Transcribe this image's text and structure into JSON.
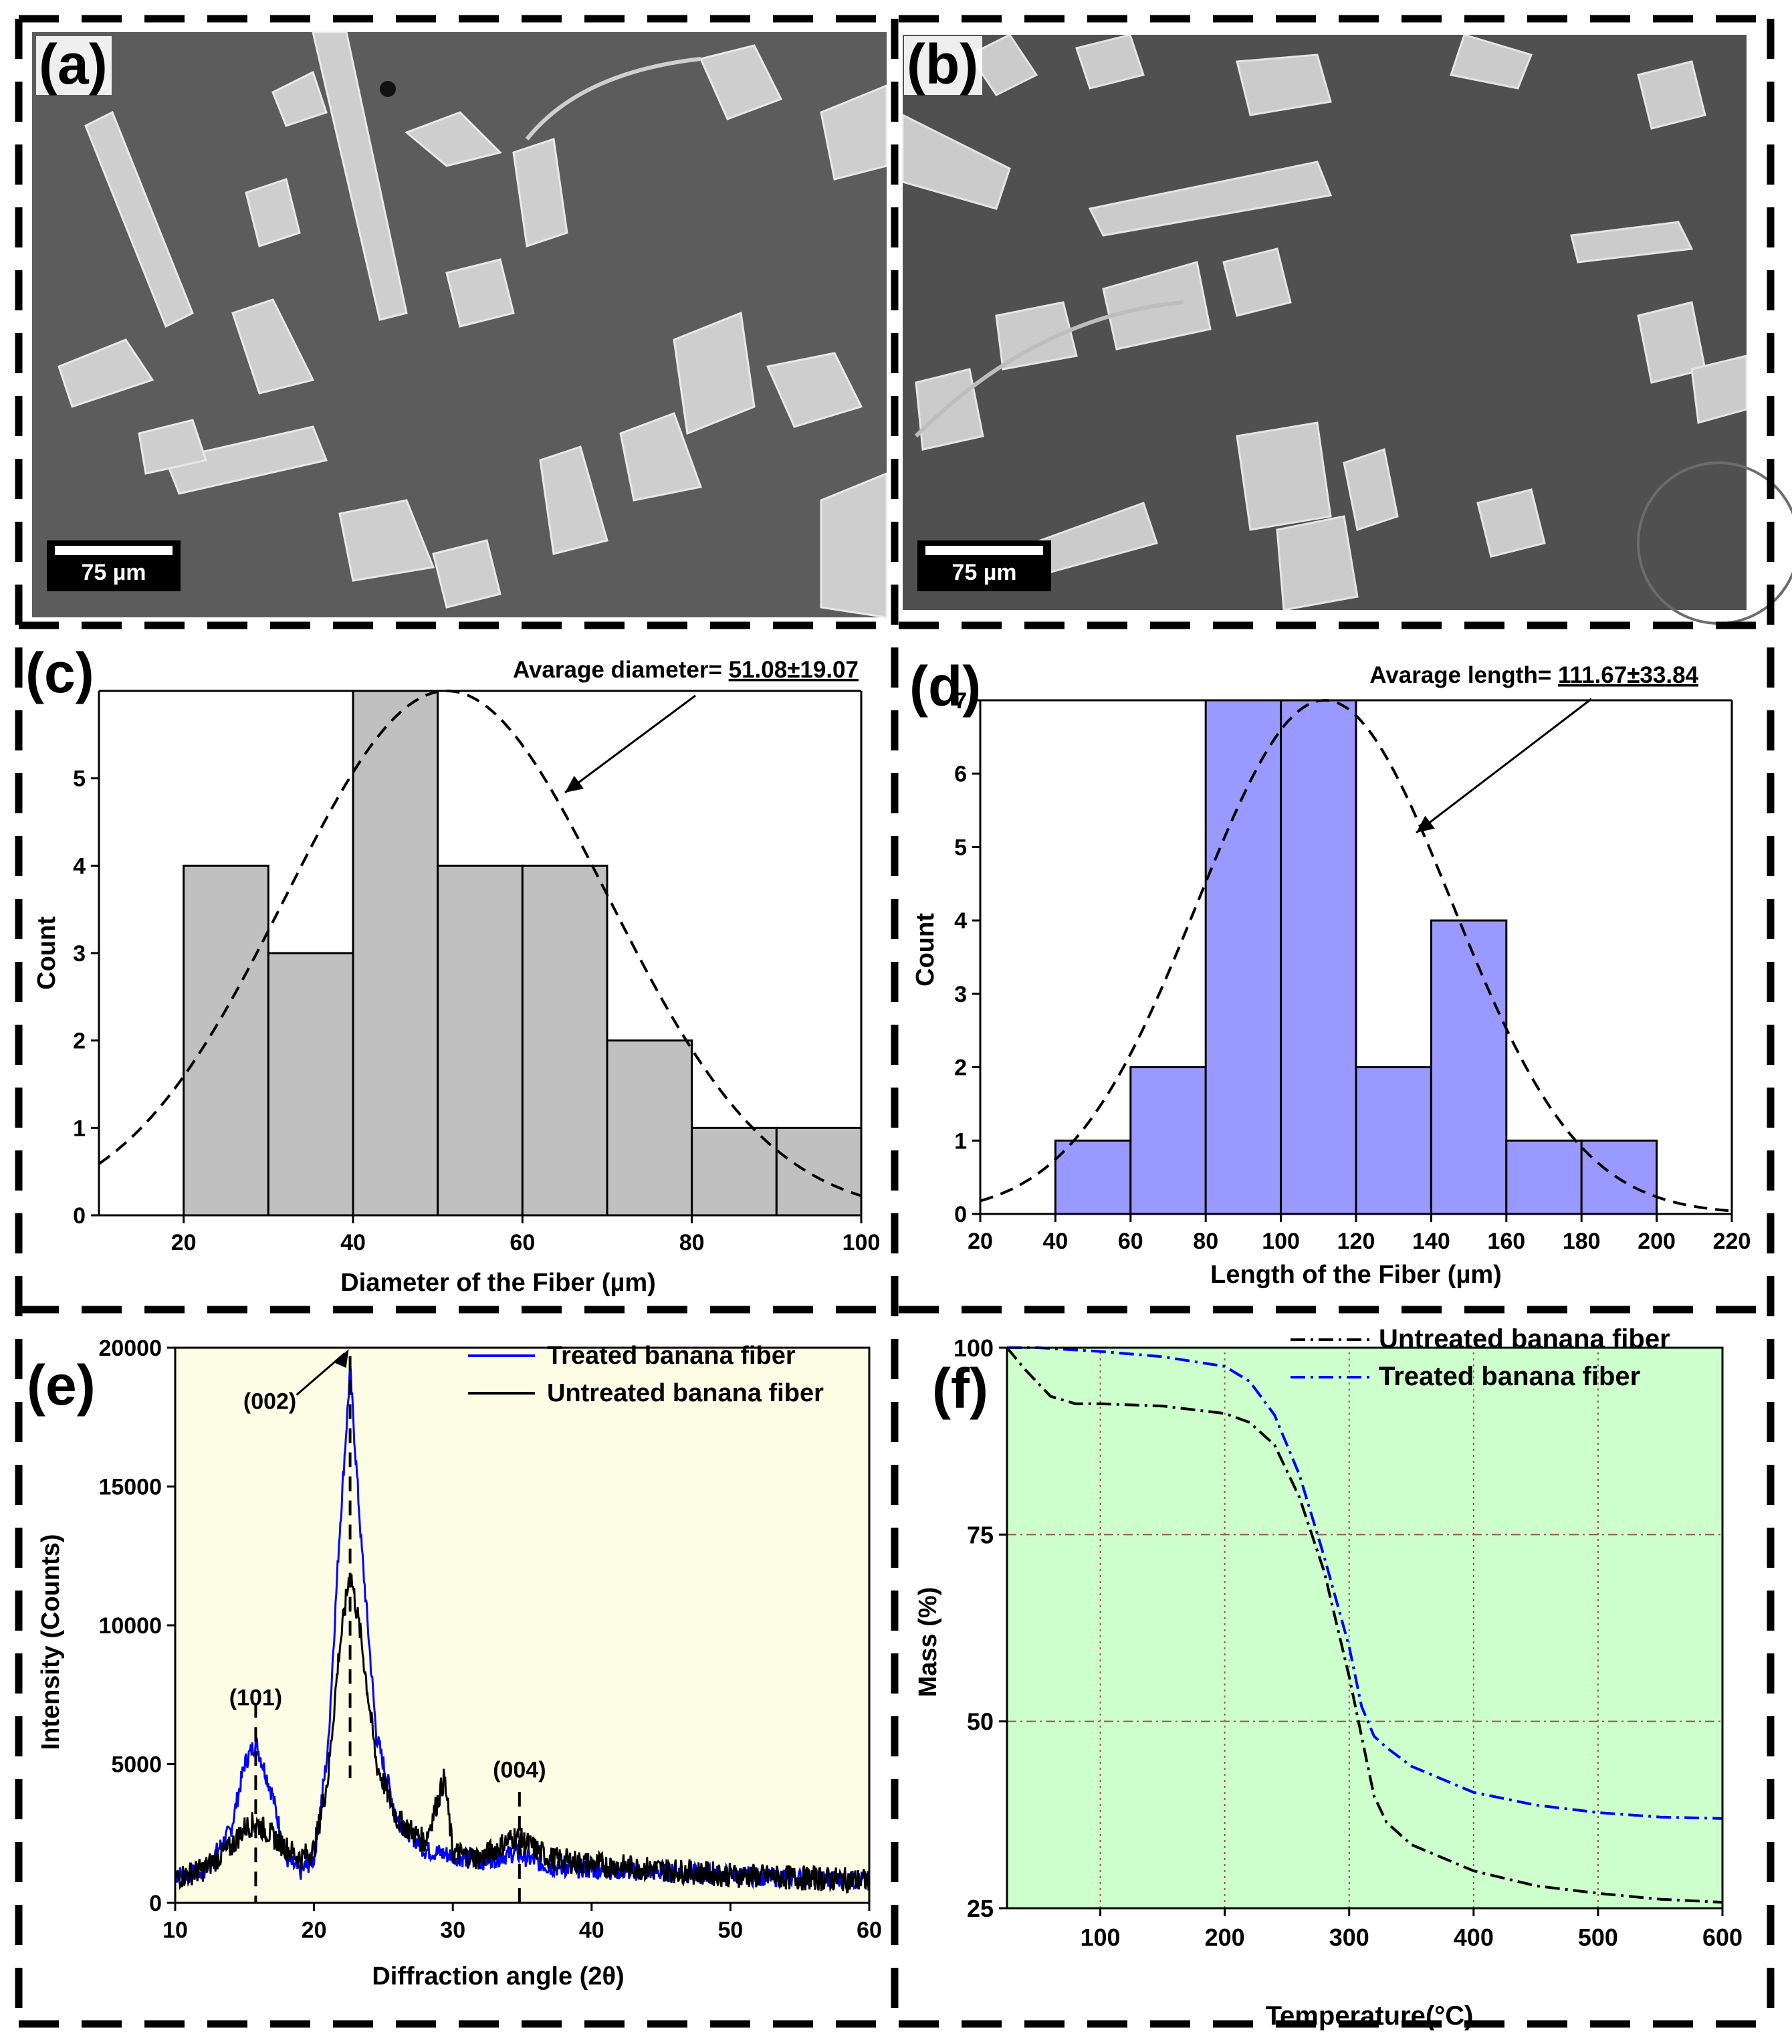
{
  "panels": {
    "a": {
      "letter": "(a)",
      "scale_bar": "75 µm"
    },
    "b": {
      "letter": "(b)",
      "scale_bar": "75 µm"
    },
    "c": {
      "letter": "(c)"
    },
    "d": {
      "letter": "(d)"
    },
    "e": {
      "letter": "(e)"
    },
    "f": {
      "letter": "(f)"
    }
  },
  "colors": {
    "hist_c": "#c0c0c0",
    "hist_d": "#9999ff",
    "xrd_bg": "#fdfde6",
    "tga_bg": "#ccffcc",
    "treated_xrd": "#0000ff",
    "untreated_xrd": "#000000",
    "untreated_tga": "#000000",
    "treated_tga": "#0000ff",
    "tga_grid": "#a05050"
  },
  "chart_data": [
    {
      "id": "c",
      "type": "bar",
      "bins": [
        [
          20,
          30
        ],
        [
          30,
          40
        ],
        [
          40,
          50
        ],
        [
          50,
          60
        ],
        [
          60,
          70
        ],
        [
          70,
          80
        ],
        [
          80,
          90
        ],
        [
          90,
          100
        ]
      ],
      "values": [
        4,
        3,
        6,
        4,
        4,
        2,
        1,
        1
      ],
      "fit": {
        "type": "normal",
        "mean": 51.08,
        "sd": 19.07,
        "peak": 6
      },
      "xlabel": "Diameter of the Fiber (µm)",
      "ylabel": "Count",
      "xlim": [
        10,
        100
      ],
      "ylim": [
        0,
        6
      ],
      "xticks": [
        "20",
        "40",
        "60",
        "80",
        "100"
      ],
      "yticks": [
        "0",
        "1",
        "2",
        "3",
        "4",
        "5"
      ],
      "annotation_prefix": "Avarage diameter= ",
      "annotation_value": "51.08±19.07"
    },
    {
      "id": "d",
      "type": "bar",
      "bins": [
        [
          40,
          60
        ],
        [
          60,
          80
        ],
        [
          80,
          100
        ],
        [
          100,
          120
        ],
        [
          120,
          140
        ],
        [
          140,
          160
        ],
        [
          160,
          180
        ],
        [
          180,
          200
        ]
      ],
      "values": [
        1,
        2,
        7,
        7,
        2,
        4,
        1,
        1
      ],
      "fit": {
        "type": "normal",
        "mean": 111.67,
        "sd": 33.84,
        "peak": 7
      },
      "xlabel": "Length of the Fiber (µm)",
      "ylabel": "Count",
      "xlim": [
        20,
        220
      ],
      "ylim": [
        0,
        7
      ],
      "xticks": [
        "20",
        "40",
        "60",
        "80",
        "100",
        "120",
        "140",
        "160",
        "180",
        "200",
        "220"
      ],
      "yticks": [
        "0",
        "1",
        "2",
        "3",
        "4",
        "5",
        "6",
        "7"
      ],
      "annotation_prefix": "Avarage length= ",
      "annotation_value": "111.67±33.84"
    },
    {
      "id": "e",
      "type": "line",
      "xlabel": "Diffraction angle (2θ)",
      "ylabel": "Intensity (Counts)",
      "xlim": [
        10,
        60
      ],
      "ylim": [
        0,
        20000
      ],
      "xticks": [
        "10",
        "20",
        "30",
        "40",
        "50",
        "60"
      ],
      "yticks": [
        "0",
        "5000",
        "10000",
        "15000",
        "20000"
      ],
      "legend": "top-right",
      "series": [
        {
          "name": "Treated banana fiber",
          "x": [
            10,
            12,
            14,
            15,
            15.8,
            17,
            18,
            19,
            20,
            21,
            21.8,
            22.6,
            23.4,
            24.5,
            26,
            28,
            30,
            32,
            34.5,
            37,
            40,
            45,
            50,
            55,
            60
          ],
          "y": [
            1000,
            1100,
            2600,
            5000,
            5800,
            3900,
            1600,
            1100,
            1600,
            5500,
            13000,
            19200,
            13000,
            6000,
            3000,
            1900,
            1700,
            1500,
            1800,
            1300,
            1200,
            1100,
            1000,
            900,
            800
          ]
        },
        {
          "name": "Untreated banana fiber",
          "x": [
            10,
            12,
            14,
            15,
            15.8,
            17,
            18,
            19,
            20,
            21,
            21.8,
            22.6,
            23.4,
            24.5,
            26,
            28,
            29.4,
            30,
            32,
            34.5,
            37,
            40,
            45,
            50,
            55,
            60
          ],
          "y": [
            900,
            1200,
            2000,
            2700,
            2900,
            2400,
            2000,
            1600,
            1900,
            4500,
            9000,
            12000,
            9500,
            5000,
            3000,
            2200,
            4500,
            1800,
            1600,
            2400,
            1600,
            1400,
            1200,
            1000,
            900,
            800
          ]
        }
      ],
      "annotations": [
        {
          "label": "(002)",
          "x": 22.6
        },
        {
          "label": "(101)",
          "x": 15.8
        },
        {
          "label": "(004)",
          "x": 34.8
        }
      ]
    },
    {
      "id": "f",
      "type": "line",
      "xlabel": "Temperature(°C)",
      "ylabel": "Mass (%)",
      "xlim": [
        25,
        600
      ],
      "ylim": [
        25,
        100
      ],
      "xticks": [
        "100",
        "200",
        "300",
        "400",
        "500",
        "600"
      ],
      "yticks": [
        "25",
        "50",
        "75",
        "100"
      ],
      "grid": true,
      "legend": "top-right",
      "series": [
        {
          "name": "Untreated banana fiber",
          "x": [
            25,
            40,
            60,
            80,
            100,
            150,
            200,
            220,
            240,
            260,
            280,
            300,
            310,
            320,
            330,
            350,
            400,
            450,
            500,
            550,
            600
          ],
          "y": [
            100,
            97,
            93.5,
            92.5,
            92.5,
            92.2,
            91.2,
            90,
            87,
            80,
            70,
            56,
            48,
            40,
            36.5,
            33.5,
            30,
            28,
            27,
            26.2,
            25.8
          ]
        },
        {
          "name": "Treated banana fiber",
          "x": [
            25,
            50,
            100,
            150,
            200,
            220,
            240,
            260,
            280,
            300,
            310,
            320,
            330,
            350,
            400,
            450,
            500,
            550,
            600
          ],
          "y": [
            100,
            100,
            99.5,
            98.8,
            97.5,
            95.5,
            91,
            83,
            72,
            60,
            52,
            48,
            46.5,
            44,
            40.5,
            38.8,
            37.8,
            37.2,
            37
          ]
        }
      ]
    }
  ]
}
